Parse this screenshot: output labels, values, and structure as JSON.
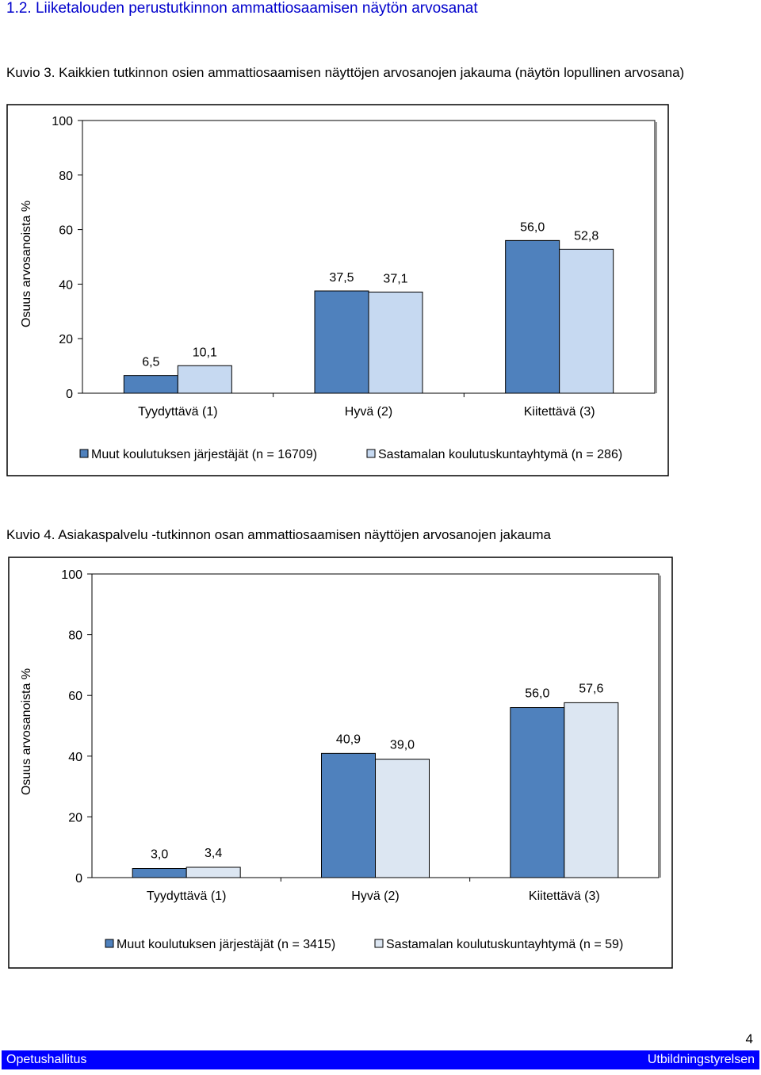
{
  "section_title": "1.2. Liiketalouden perustutkinnon ammattiosaamisen näytön arvosanat",
  "figure1_caption": "Kuvio 3. Kaikkien tutkinnon osien ammattiosaamisen näyttöjen arvosanojen jakauma (näytön lopullinen arvosana)",
  "figure2_caption": "Kuvio 4. Asiakaspalvelu -tutkinnon osan ammattiosaamisen näyttöjen arvosanojen jakauma",
  "page_number": "4",
  "footer": {
    "left": "Opetushallitus",
    "right": "Utbildningstyrelsen"
  },
  "chart_data": [
    {
      "type": "bar",
      "title": "",
      "ylabel": "Osuus arvosanoista %",
      "xlabel": "",
      "ylim": [
        0,
        100
      ],
      "yticks": [
        "0",
        "20",
        "40",
        "60",
        "80",
        "100"
      ],
      "grid": false,
      "legend_position": "bottom",
      "categories": [
        "Tyydyttävä (1)",
        "Hyvä (2)",
        "Kiitettävä (3)"
      ],
      "series": [
        {
          "name": "Muut koulutuksen järjestäjät (n = 16709)",
          "values": [
            6.5,
            37.5,
            56.0
          ],
          "labels": [
            "6,5",
            "37,5",
            "56,0"
          ],
          "color": "#4f81bd"
        },
        {
          "name": "Sastamalan koulutuskuntayhtymä (n = 286)",
          "values": [
            10.1,
            37.1,
            52.8
          ],
          "labels": [
            "10,1",
            "37,1",
            "52,8"
          ],
          "color": "#c6d9f1"
        }
      ]
    },
    {
      "type": "bar",
      "title": "",
      "ylabel": "Osuus arvosanoista %",
      "xlabel": "",
      "ylim": [
        0,
        100
      ],
      "yticks": [
        "0",
        "20",
        "40",
        "60",
        "80",
        "100"
      ],
      "grid": false,
      "legend_position": "bottom",
      "categories": [
        "Tyydyttävä (1)",
        "Hyvä (2)",
        "Kiitettävä (3)"
      ],
      "series": [
        {
          "name": "Muut koulutuksen järjestäjät (n = 3415)",
          "values": [
            3.0,
            40.9,
            56.0
          ],
          "labels": [
            "3,0",
            "40,9",
            "56,0"
          ],
          "color": "#4f81bd"
        },
        {
          "name": "Sastamalan koulutuskuntayhtymä (n = 59)",
          "values": [
            3.4,
            39.0,
            57.6
          ],
          "labels": [
            "3,4",
            "39,0",
            "57,6"
          ],
          "color": "#dce6f2"
        }
      ]
    }
  ]
}
